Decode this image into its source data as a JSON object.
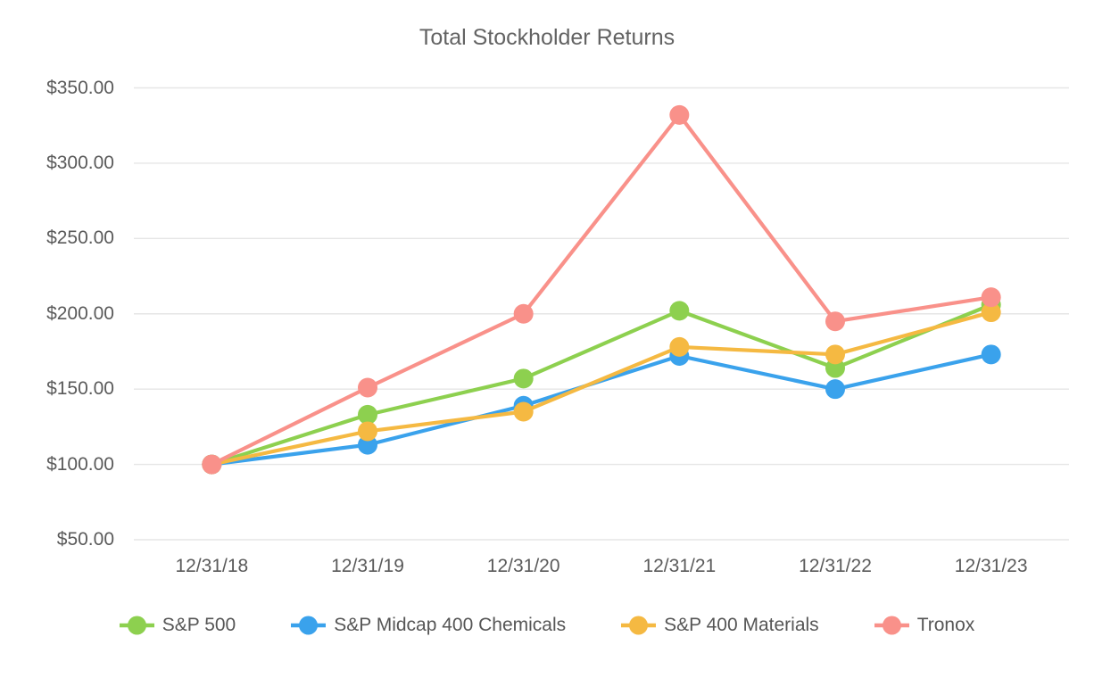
{
  "page": {
    "background_color": "#ffffff",
    "text_color": "#5a5a5a",
    "title_color": "#636363",
    "grid_color": "#e6e6e6"
  },
  "chart_data": {
    "type": "line",
    "title": "Total Stockholder Returns",
    "xlabel": "",
    "ylabel": "",
    "x_categories": [
      "12/31/18",
      "12/31/19",
      "12/31/20",
      "12/31/21",
      "12/31/22",
      "12/31/23"
    ],
    "y_axis": {
      "min": 50,
      "max": 350,
      "step": 50,
      "tick_labels": [
        "$350.00",
        "$300.00",
        "$250.00",
        "$200.00",
        "$150.00",
        "$100.00",
        "$50.00"
      ]
    },
    "grid": true,
    "legend_position": "bottom",
    "marker_style": "circle",
    "series": [
      {
        "name": "S&P 500",
        "color": "#8dd04f",
        "values": [
          100,
          133,
          157,
          202,
          164,
          206
        ]
      },
      {
        "name": "S&P Midcap 400 Chemicals",
        "color": "#3aa2ec",
        "values": [
          100,
          113,
          139,
          172,
          150,
          173
        ]
      },
      {
        "name": "S&P 400 Materials",
        "color": "#f5b942",
        "values": [
          100,
          122,
          135,
          178,
          173,
          201
        ]
      },
      {
        "name": "Tronox",
        "color": "#f9918a",
        "values": [
          100,
          151,
          200,
          332,
          195,
          211
        ]
      }
    ]
  }
}
